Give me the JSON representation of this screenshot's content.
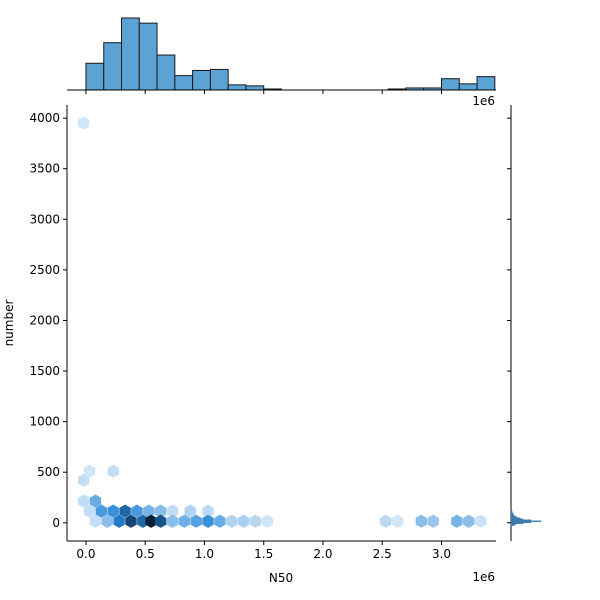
{
  "chart_data": {
    "type": "hexbin-jointplot",
    "xlabel": "N50",
    "ylabel": "number",
    "x_offset_label": "1e6",
    "top_offset_label": "1e6",
    "xlim": [
      -0.16,
      3.46
    ],
    "ylim": [
      -180,
      4130
    ],
    "x_ticks": [
      0.0,
      0.5,
      1.0,
      1.5,
      2.0,
      2.5,
      3.0
    ],
    "x_tick_labels": [
      "0.0",
      "0.5",
      "1.0",
      "1.5",
      "2.0",
      "2.5",
      "3.0"
    ],
    "y_ticks": [
      0,
      500,
      1000,
      1500,
      2000,
      2500,
      3000,
      3500,
      4000
    ],
    "y_tick_labels": [
      "0",
      "500",
      "1000",
      "1500",
      "2000",
      "2500",
      "3000",
      "3500",
      "4000"
    ],
    "hexbins": [
      {
        "x": -0.02,
        "y": 3950,
        "d": 0.08
      },
      {
        "x": -0.02,
        "y": 420,
        "d": 0.12
      },
      {
        "x": 0.03,
        "y": 510,
        "d": 0.08
      },
      {
        "x": 0.23,
        "y": 510,
        "d": 0.12
      },
      {
        "x": -0.02,
        "y": 215,
        "d": 0.12
      },
      {
        "x": 0.08,
        "y": 215,
        "d": 0.4
      },
      {
        "x": 0.03,
        "y": 115,
        "d": 0.12
      },
      {
        "x": 0.13,
        "y": 115,
        "d": 0.5
      },
      {
        "x": 0.23,
        "y": 115,
        "d": 0.55
      },
      {
        "x": 0.33,
        "y": 115,
        "d": 0.72
      },
      {
        "x": 0.43,
        "y": 115,
        "d": 0.5
      },
      {
        "x": 0.53,
        "y": 115,
        "d": 0.35
      },
      {
        "x": 0.63,
        "y": 115,
        "d": 0.3
      },
      {
        "x": 0.73,
        "y": 115,
        "d": 0.12
      },
      {
        "x": 0.88,
        "y": 115,
        "d": 0.18
      },
      {
        "x": 1.03,
        "y": 115,
        "d": 0.14
      },
      {
        "x": 0.08,
        "y": 15,
        "d": 0.12
      },
      {
        "x": 0.18,
        "y": 15,
        "d": 0.3
      },
      {
        "x": 0.28,
        "y": 15,
        "d": 0.65
      },
      {
        "x": 0.38,
        "y": 15,
        "d": 0.85
      },
      {
        "x": 0.48,
        "y": 15,
        "d": 0.72
      },
      {
        "x": 0.55,
        "y": 15,
        "d": 1.0
      },
      {
        "x": 0.63,
        "y": 15,
        "d": 0.8
      },
      {
        "x": 0.73,
        "y": 15,
        "d": 0.3
      },
      {
        "x": 0.83,
        "y": 15,
        "d": 0.38
      },
      {
        "x": 0.93,
        "y": 15,
        "d": 0.45
      },
      {
        "x": 1.03,
        "y": 15,
        "d": 0.55
      },
      {
        "x": 1.13,
        "y": 15,
        "d": 0.4
      },
      {
        "x": 1.23,
        "y": 15,
        "d": 0.18
      },
      {
        "x": 1.33,
        "y": 15,
        "d": 0.2
      },
      {
        "x": 1.43,
        "y": 15,
        "d": 0.16
      },
      {
        "x": 1.53,
        "y": 15,
        "d": 0.08
      },
      {
        "x": 2.53,
        "y": 15,
        "d": 0.14
      },
      {
        "x": 2.63,
        "y": 15,
        "d": 0.08
      },
      {
        "x": 2.83,
        "y": 15,
        "d": 0.3
      },
      {
        "x": 2.93,
        "y": 15,
        "d": 0.25
      },
      {
        "x": 3.13,
        "y": 15,
        "d": 0.35
      },
      {
        "x": 3.23,
        "y": 15,
        "d": 0.3
      },
      {
        "x": 3.33,
        "y": 15,
        "d": 0.1
      }
    ],
    "top_histogram": {
      "bin_start": 0.0,
      "bin_width": 0.15,
      "counts": [
        26,
        46,
        70,
        65,
        34,
        14,
        19,
        20,
        5,
        4,
        1,
        0,
        0,
        0,
        0,
        0,
        0,
        1,
        2,
        2,
        11,
        6,
        13
      ]
    },
    "right_histogram": {
      "bin_start": -30,
      "bin_width": 10,
      "counts": [
        3,
        5,
        12,
        20,
        30,
        20,
        12,
        9,
        6,
        4,
        3,
        2,
        2,
        1,
        1,
        1
      ],
      "max_count": 72
    },
    "colors": {
      "hex_low": "#eaf3fc",
      "hex_mid": "#2887d8",
      "hex_high": "#08203a",
      "hist_fill": "#5ba2d5",
      "hist_edge": "#1a1a1a",
      "right_hist_fill": "#3a7bb0"
    }
  }
}
